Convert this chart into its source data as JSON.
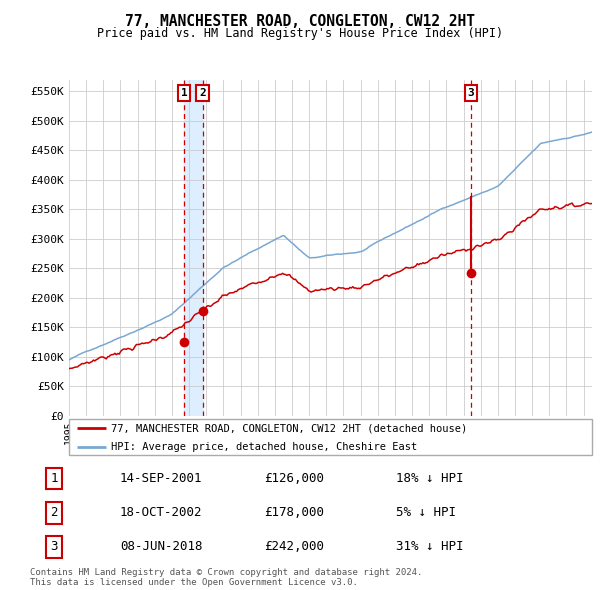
{
  "title": "77, MANCHESTER ROAD, CONGLETON, CW12 2HT",
  "subtitle": "Price paid vs. HM Land Registry's House Price Index (HPI)",
  "ylabel_ticks": [
    "£0",
    "£50K",
    "£100K",
    "£150K",
    "£200K",
    "£250K",
    "£300K",
    "£350K",
    "£400K",
    "£450K",
    "£500K",
    "£550K"
  ],
  "ytick_values": [
    0,
    50000,
    100000,
    150000,
    200000,
    250000,
    300000,
    350000,
    400000,
    450000,
    500000,
    550000
  ],
  "ylim": [
    0,
    570000
  ],
  "hpi_color": "#7aa8d2",
  "price_color": "#cc0000",
  "sale_marker_color": "#cc0000",
  "vline_color": "#cc0000",
  "vshade_color": "#ddeeff",
  "sale1_date": 2001.71,
  "sale2_date": 2002.79,
  "sale3_date": 2018.44,
  "sale1_price": 126000,
  "sale2_price": 178000,
  "sale3_price": 242000,
  "legend1": "77, MANCHESTER ROAD, CONGLETON, CW12 2HT (detached house)",
  "legend2": "HPI: Average price, detached house, Cheshire East",
  "table_data": [
    [
      "1",
      "14-SEP-2001",
      "£126,000",
      "18% ↓ HPI"
    ],
    [
      "2",
      "18-OCT-2002",
      "£178,000",
      "5% ↓ HPI"
    ],
    [
      "3",
      "08-JUN-2018",
      "£242,000",
      "31% ↓ HPI"
    ]
  ],
  "footnote": "Contains HM Land Registry data © Crown copyright and database right 2024.\nThis data is licensed under the Open Government Licence v3.0.",
  "background_color": "#ffffff",
  "grid_color": "#cccccc",
  "xstart": 1995,
  "xend": 2025.5
}
